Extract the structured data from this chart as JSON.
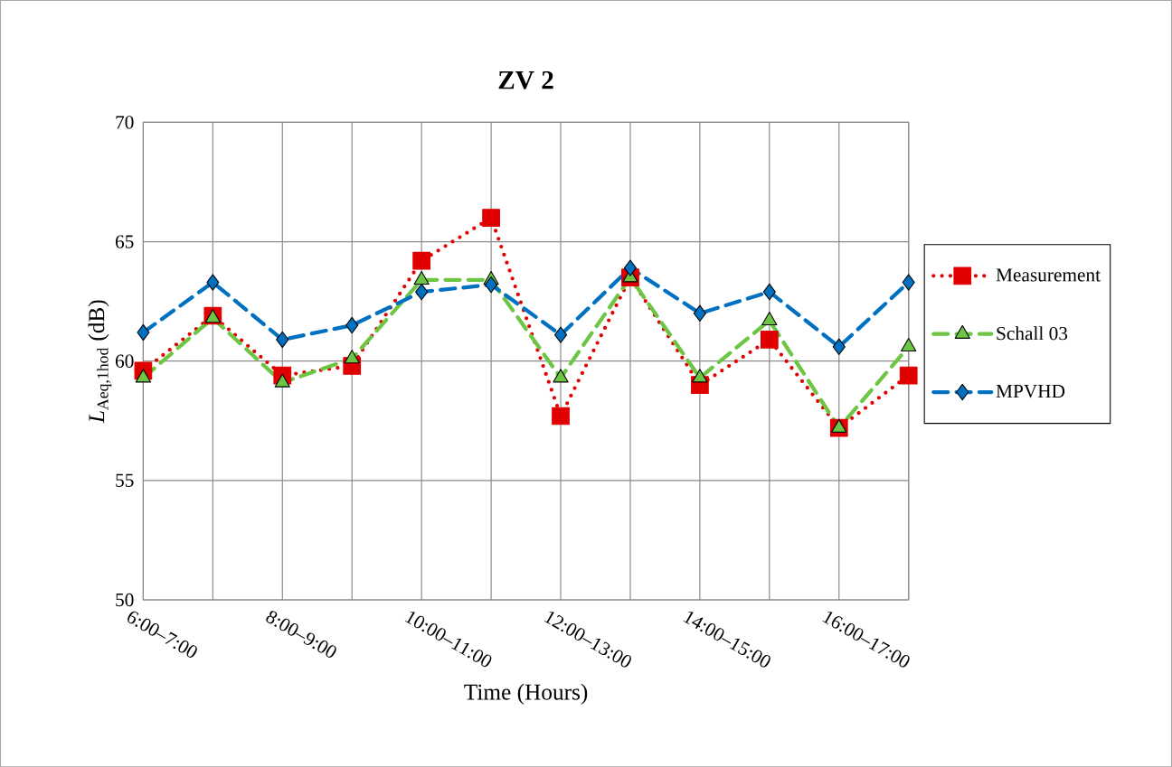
{
  "chart_data": {
    "type": "line",
    "title": "ZV 2",
    "xlabel": "Time (Hours)",
    "ylabel": "*L*$_{Aeq,1hod}$ (dB)",
    "categories": [
      "6:00–7:00",
      null,
      "8:00–9:00",
      null,
      "10:00–11:00",
      null,
      "12:00–13:00",
      null,
      "14:00–15:00",
      null,
      "16:00–17:00",
      null
    ],
    "series": [
      {
        "name": "Measurement",
        "color": "#e00000",
        "marker": "square",
        "line_style": "dotted",
        "values": [
          59.6,
          61.9,
          59.4,
          59.8,
          64.2,
          66.0,
          57.7,
          63.5,
          59.0,
          60.9,
          57.2,
          59.4
        ]
      },
      {
        "name": "Schall 03",
        "color": "#6cc644",
        "marker": "triangle",
        "line_style": "dashed",
        "values": [
          59.3,
          61.8,
          59.1,
          60.1,
          63.4,
          63.4,
          59.3,
          63.5,
          59.3,
          61.7,
          57.2,
          60.6
        ]
      },
      {
        "name": "MPVHD",
        "color": "#0070c0",
        "marker": "diamond",
        "line_style": "dashed",
        "values": [
          61.2,
          63.3,
          60.9,
          61.5,
          62.9,
          63.2,
          61.1,
          63.9,
          62.0,
          62.9,
          60.6,
          63.3
        ]
      }
    ],
    "ylim": [
      50,
      70
    ],
    "yticks": [
      50,
      55,
      60,
      65,
      70
    ],
    "grid": true,
    "legend": "right"
  }
}
